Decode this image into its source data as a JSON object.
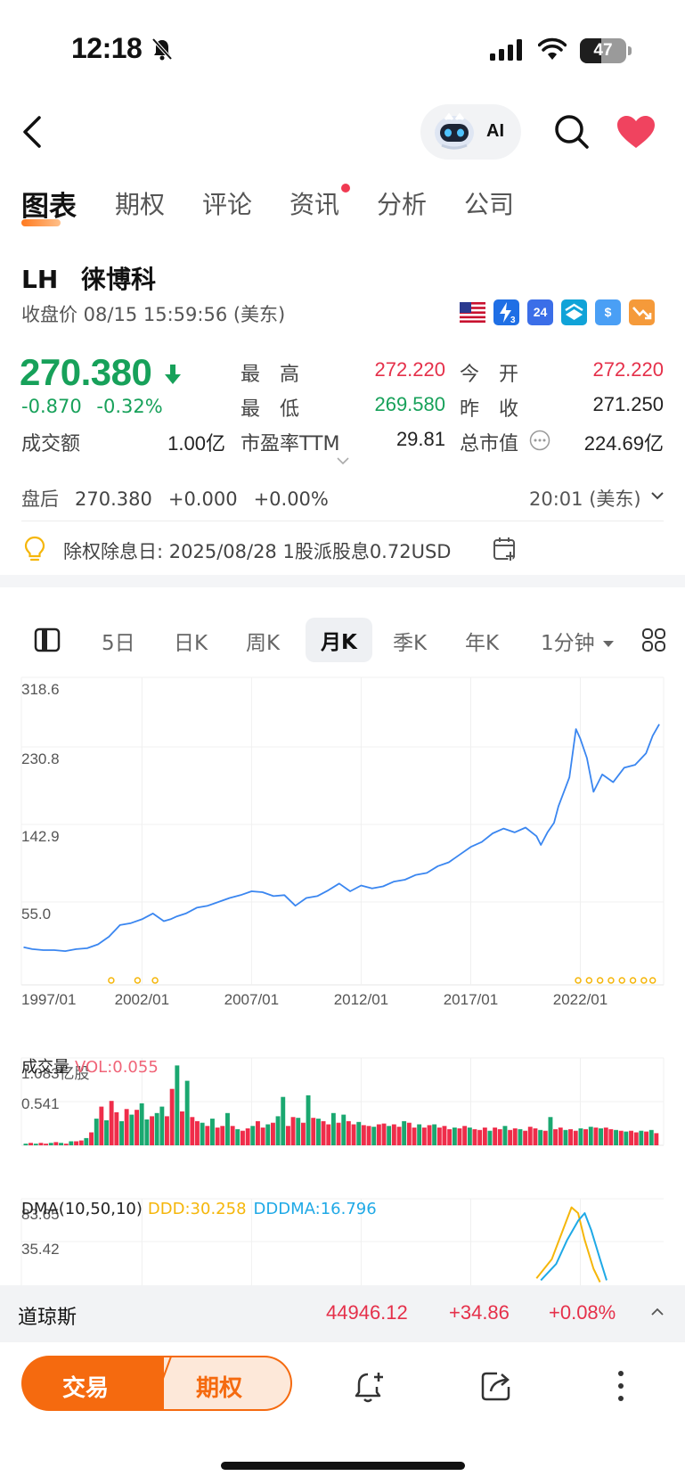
{
  "status_bar": {
    "time": "12:18",
    "battery": "47",
    "battery_level": 0.47
  },
  "nav": {
    "ai_label": "AI"
  },
  "tabs": [
    {
      "label": "图表",
      "active": true
    },
    {
      "label": "期权"
    },
    {
      "label": "评论"
    },
    {
      "label": "资讯",
      "has_dot": true
    },
    {
      "label": "分析"
    },
    {
      "label": "公司"
    }
  ],
  "stock": {
    "symbol": "LH",
    "name": "徕博科",
    "close_info": "收盘价 08/15 15:59:56 (美东)",
    "price": "270.380",
    "change": "-0.870",
    "change_pct": "-0.32%"
  },
  "market_icons": [
    {
      "name": "us-flag-icon",
      "color": "#c8102e",
      "text": ""
    },
    {
      "name": "lightning-3-icon",
      "color": "#1f6fe5",
      "text": "3"
    },
    {
      "name": "24h-icon",
      "color": "#3b6ee8",
      "text": "24"
    },
    {
      "name": "layers-icon",
      "color": "#10a3d8",
      "text": ""
    },
    {
      "name": "dollar-icon",
      "color": "#4a9ff5",
      "text": "$"
    },
    {
      "name": "trend-down-icon",
      "color": "#f59a3a",
      "text": ""
    }
  ],
  "quote": {
    "high_label": "最　高",
    "high": "272.220",
    "open_label": "今　开",
    "open": "272.220",
    "low_label": "最　低",
    "low": "269.580",
    "prev_close_label": "昨　收",
    "prev_close": "271.250",
    "turnover_label": "成交额",
    "turnover": "1.00亿",
    "pe_label": "市盈率TTM",
    "pe": "29.81",
    "mcap_label": "总市值",
    "mcap": "224.69亿"
  },
  "after_hours": {
    "label": "盘后",
    "price": "270.380",
    "change": "+0.000",
    "change_pct": "+0.00%",
    "time": "20:01 (美东)"
  },
  "dividend_text": "除权除息日: 2025/08/28 1股派股息0.72USD",
  "periods": [
    "5日",
    "日K",
    "周K",
    "月K",
    "季K",
    "年K",
    "1分钟"
  ],
  "active_period": "月K",
  "chart_data": [
    {
      "type": "line",
      "title": "",
      "x_ticks": [
        "1997/01",
        "2002/01",
        "2007/01",
        "2012/01",
        "2017/01",
        "2022/01"
      ],
      "y_ticks": [
        "318.6",
        "230.8",
        "142.9",
        "55.0"
      ],
      "ylim": [
        0,
        318.6
      ],
      "xlim": [
        1996.5,
        2025.8
      ],
      "grid": true,
      "color": "#3a86f0",
      "x": [
        1996.6,
        1997.0,
        1997.5,
        1998.0,
        1998.5,
        1999.0,
        1999.5,
        2000.0,
        2000.5,
        2001.0,
        2001.5,
        2002.0,
        2002.5,
        2003.0,
        2003.3,
        2003.6,
        2004.0,
        2004.5,
        2005.0,
        2005.5,
        2006.0,
        2006.5,
        2007.0,
        2007.5,
        2008.0,
        2008.5,
        2009.0,
        2009.5,
        2010.0,
        2010.5,
        2011.0,
        2011.5,
        2012.0,
        2012.5,
        2013.0,
        2013.5,
        2014.0,
        2014.5,
        2015.0,
        2015.5,
        2016.0,
        2016.5,
        2017.0,
        2017.5,
        2018.0,
        2018.5,
        2019.0,
        2019.5,
        2020.0,
        2020.2,
        2020.5,
        2020.8,
        2021.0,
        2021.5,
        2021.8,
        2022.0,
        2022.3,
        2022.6,
        2023.0,
        2023.5,
        2024.0,
        2024.5,
        2025.0,
        2025.3,
        2025.6
      ],
      "y": [
        39,
        37,
        36,
        36,
        35,
        37,
        38,
        42,
        50,
        62,
        64,
        68,
        74,
        66,
        68,
        71,
        74,
        80,
        82,
        86,
        90,
        93,
        97,
        96,
        92,
        93,
        82,
        90,
        92,
        98,
        105,
        97,
        103,
        100,
        102,
        107,
        109,
        114,
        116,
        123,
        127,
        135,
        143,
        148,
        157,
        162,
        158,
        163,
        154,
        145,
        158,
        168,
        185,
        215,
        265,
        255,
        235,
        200,
        218,
        210,
        225,
        228,
        240,
        258,
        270
      ]
    },
    {
      "type": "bar",
      "title": "成交量",
      "indicator": "VOL:0.055",
      "y_ticks": [
        "1.083亿股",
        "0.541"
      ],
      "ylim": [
        0,
        1.083
      ],
      "up_color": "#1aa870",
      "down_color": "#ef2d4a",
      "values": [
        0.02,
        0.03,
        0.02,
        0.03,
        0.02,
        0.03,
        0.04,
        0.03,
        0.02,
        0.05,
        0.05,
        0.06,
        0.09,
        0.16,
        0.33,
        0.48,
        0.31,
        0.55,
        0.41,
        0.3,
        0.45,
        0.38,
        0.44,
        0.52,
        0.32,
        0.36,
        0.4,
        0.48,
        0.36,
        0.7,
        0.99,
        0.42,
        0.8,
        0.35,
        0.3,
        0.28,
        0.24,
        0.33,
        0.22,
        0.24,
        0.4,
        0.24,
        0.2,
        0.18,
        0.21,
        0.24,
        0.3,
        0.22,
        0.26,
        0.28,
        0.36,
        0.6,
        0.24,
        0.35,
        0.34,
        0.28,
        0.62,
        0.34,
        0.33,
        0.3,
        0.26,
        0.4,
        0.28,
        0.38,
        0.3,
        0.26,
        0.29,
        0.25,
        0.24,
        0.23,
        0.26,
        0.27,
        0.24,
        0.26,
        0.23,
        0.3,
        0.28,
        0.22,
        0.26,
        0.22,
        0.25,
        0.26,
        0.22,
        0.24,
        0.2,
        0.22,
        0.21,
        0.24,
        0.22,
        0.2,
        0.19,
        0.22,
        0.18,
        0.22,
        0.2,
        0.24,
        0.19,
        0.21,
        0.2,
        0.18,
        0.23,
        0.21,
        0.19,
        0.18,
        0.35,
        0.2,
        0.22,
        0.19,
        0.2,
        0.18,
        0.21,
        0.2,
        0.23,
        0.22,
        0.21,
        0.22,
        0.2,
        0.19,
        0.18,
        0.17,
        0.18,
        0.16,
        0.18,
        0.17,
        0.19,
        0.15
      ],
      "up_flags": [
        1,
        0,
        1,
        0,
        0,
        1,
        0,
        1,
        0,
        1,
        0,
        0,
        1,
        0,
        1,
        0,
        1,
        0,
        0,
        1,
        0,
        1,
        0,
        1,
        1,
        0,
        1,
        1,
        0,
        0,
        1,
        0,
        1,
        0,
        0,
        1,
        0,
        1,
        0,
        0,
        1,
        0,
        1,
        0,
        0,
        1,
        0,
        0,
        1,
        0,
        1,
        1,
        0,
        0,
        1,
        0,
        1,
        0,
        1,
        0,
        0,
        1,
        0,
        1,
        0,
        0,
        1,
        0,
        0,
        1,
        0,
        0,
        1,
        0,
        0,
        1,
        0,
        0,
        1,
        0,
        0,
        1,
        0,
        0,
        0,
        1,
        0,
        0,
        1,
        0,
        0,
        0,
        1,
        0,
        0,
        1,
        0,
        0,
        1,
        0,
        0,
        0,
        1,
        0,
        1,
        0,
        0,
        1,
        0,
        0,
        1,
        0,
        1,
        0,
        1,
        0,
        0,
        1,
        0,
        1,
        0,
        0,
        1,
        0,
        1,
        0
      ]
    },
    {
      "type": "line",
      "title": "DMA(10,50,10)",
      "indicators": [
        "DDD:30.258",
        "DDDMA:16.796"
      ],
      "y_ticks": [
        "83.65",
        "35.42"
      ],
      "series": [
        {
          "name": "DDD",
          "color": "#f5b60a",
          "x": [
            2020.0,
            2020.7,
            2021.2,
            2021.6,
            2021.9,
            2022.2,
            2022.6,
            2022.9
          ],
          "y": [
            10,
            30,
            60,
            84,
            78,
            50,
            20,
            6
          ]
        },
        {
          "name": "DDDMA",
          "color": "#1fa9e6",
          "x": [
            2020.2,
            2020.9,
            2021.4,
            2021.9,
            2022.2,
            2022.5,
            2022.9,
            2023.2
          ],
          "y": [
            8,
            25,
            50,
            70,
            78,
            60,
            30,
            8
          ]
        }
      ]
    }
  ],
  "event_markers": {
    "color": "#f5b60a",
    "x": [
      2000.6,
      2001.8,
      2002.6,
      2021.9,
      2022.4,
      2022.9,
      2023.4,
      2023.9,
      2024.4,
      2024.9,
      2025.3
    ]
  },
  "ticker": {
    "name": "道琼斯",
    "value": "44946.12",
    "change": "+34.86",
    "change_pct": "+0.08%"
  },
  "bottom_bar": {
    "trade_label": "交易",
    "options_label": "期权"
  }
}
